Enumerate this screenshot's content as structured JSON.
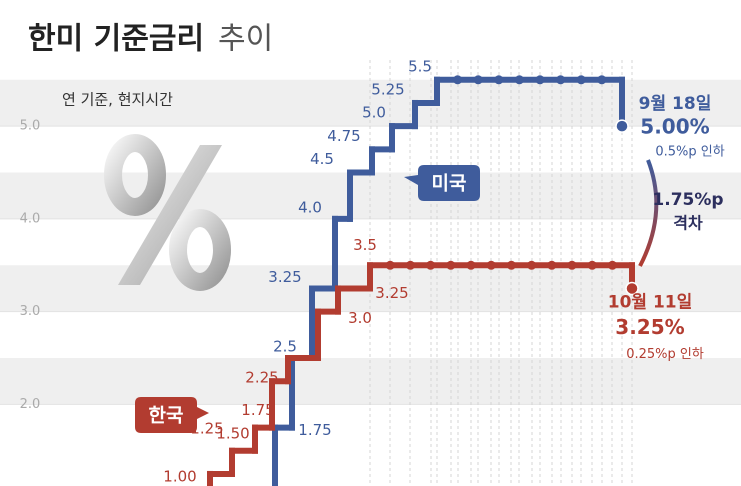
{
  "chart_data": {
    "type": "step",
    "title": "한미 기준금리",
    "title_suffix": "추이",
    "subtitle": "연 기준, 현지시간",
    "ylim": [
      1.12,
      6.36
    ],
    "yticks": [
      {
        "value": 2,
        "label": "2.0"
      },
      {
        "value": 3,
        "label": "3.0"
      },
      {
        "value": 4,
        "label": "4.0"
      },
      {
        "value": 5,
        "label": "5.0"
      }
    ],
    "series": [
      {
        "name": "미국",
        "color": "#3f5c9c",
        "values": [
          1.75,
          2.5,
          3.25,
          4.0,
          4.5,
          4.75,
          5.0,
          5.25,
          5.5,
          5.5,
          5.5,
          5.5,
          5.5,
          5.5,
          5.5,
          5.5,
          5.5,
          5.0
        ],
        "value_labels": [
          "1.75",
          "2.5",
          "3.25",
          "4.0",
          "4.5",
          "4.75",
          "5.0",
          "5.25",
          "5.5",
          null,
          null,
          null,
          null,
          null,
          null,
          null,
          null,
          "5.00%"
        ],
        "end_date": "9월 18일",
        "end_note": "0.5%p 인하"
      },
      {
        "name": "한국",
        "color": "#b23c30",
        "values": [
          1.0,
          1.25,
          1.5,
          1.75,
          2.25,
          2.5,
          3.0,
          3.25,
          3.5,
          3.5,
          3.5,
          3.5,
          3.5,
          3.5,
          3.5,
          3.5,
          3.5,
          3.5,
          3.5,
          3.5,
          3.5,
          3.25
        ],
        "value_labels": [
          "1.00",
          "1.25",
          "1.50",
          "1.75",
          "2.25",
          null,
          "3.0",
          "3.25",
          "3.5",
          null,
          null,
          null,
          null,
          null,
          null,
          null,
          null,
          null,
          null,
          null,
          null,
          "3.25%"
        ],
        "end_date": "10월 11일",
        "end_note": "0.25%p 인하"
      }
    ],
    "gap_label": "1.75%p",
    "gap_text": "격차"
  }
}
